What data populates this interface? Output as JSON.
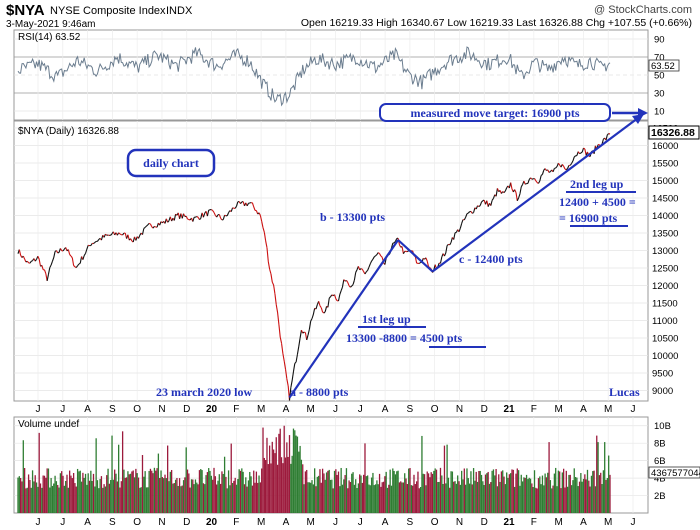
{
  "header": {
    "symbol": "$NYA",
    "name": "NYSE Composite Index",
    "exchange": "INDX",
    "watermark": "@ StockCharts.com",
    "date": "3-May-2021 9:46am",
    "ohlc": "Open 16219.33  High 16340.67  Low 16219.33  Last 16326.88  Chg +107.55 (+0.66%)"
  },
  "rsi": {
    "label": "RSI(14) 63.52",
    "value_badge": "63.52",
    "ticks": [
      "90",
      "70",
      "50",
      "30",
      "10"
    ]
  },
  "price": {
    "label": "$NYA (Daily) 16326.88",
    "last_badge": "16326.88",
    "ticks": [
      "16500",
      "16000",
      "15500",
      "15000",
      "14500",
      "14000",
      "13500",
      "13000",
      "12500",
      "12000",
      "11500",
      "11000",
      "10500",
      "10000",
      "9500",
      "9000"
    ]
  },
  "volume": {
    "label": "Volume undef",
    "badge": "4367577044",
    "ticks": [
      "10B",
      "8B",
      "6B",
      "4B",
      "2B"
    ]
  },
  "x_axis": [
    "J",
    "J",
    "A",
    "S",
    "O",
    "N",
    "D",
    "20",
    "F",
    "M",
    "A",
    "M",
    "J",
    "J",
    "A",
    "S",
    "O",
    "N",
    "D",
    "21",
    "F",
    "M",
    "A",
    "M",
    "J"
  ],
  "annotations": {
    "target": "measured move target: 16900 pts",
    "daily": "daily chart",
    "b": "b - 13300 pts",
    "c": "c - 12400 pts",
    "a": "a - 8800 pts",
    "low": "23 march 2020 low",
    "leg1_title": "1st leg up",
    "leg1_calc": "13300 -8800 = 4500 pts",
    "leg2_title": "2nd leg up",
    "leg2_calc1": "12400 + 4500 =",
    "leg2_calc2": "= 16900 pts",
    "author": "Lucas"
  },
  "colors": {
    "price": "#111111",
    "price_down": "#cc1111",
    "annotation": "#2233bb",
    "volume_up": "#2e7d32",
    "volume_down": "#9c1a3c",
    "rsi": "#6b7d8f"
  },
  "chart_data": {
    "type": "line",
    "price_anchors": [
      [
        0,
        13000
      ],
      [
        8,
        12600
      ],
      [
        15,
        12800
      ],
      [
        22,
        12200
      ],
      [
        28,
        12900
      ],
      [
        36,
        13100
      ],
      [
        44,
        12500
      ],
      [
        55,
        13200
      ],
      [
        66,
        13400
      ],
      [
        77,
        13500
      ],
      [
        88,
        13300
      ],
      [
        99,
        13700
      ],
      [
        110,
        13800
      ],
      [
        121,
        14000
      ],
      [
        133,
        13900
      ],
      [
        145,
        14100
      ],
      [
        155,
        13900
      ],
      [
        165,
        14300
      ],
      [
        175,
        14350
      ],
      [
        178,
        14250
      ],
      [
        183,
        14000
      ],
      [
        187,
        13300
      ],
      [
        190,
        12500
      ],
      [
        194,
        11800
      ],
      [
        197,
        10900
      ],
      [
        200,
        10000
      ],
      [
        203,
        9300
      ],
      [
        205,
        8800
      ],
      [
        208,
        9500
      ],
      [
        211,
        10100
      ],
      [
        214,
        10800
      ],
      [
        218,
        10500
      ],
      [
        222,
        11100
      ],
      [
        227,
        11500
      ],
      [
        232,
        11200
      ],
      [
        237,
        11800
      ],
      [
        242,
        11600
      ],
      [
        247,
        12200
      ],
      [
        252,
        12000
      ],
      [
        257,
        12500
      ],
      [
        262,
        12300
      ],
      [
        267,
        12700
      ],
      [
        272,
        12900
      ],
      [
        277,
        12600
      ],
      [
        282,
        13100
      ],
      [
        287,
        13300
      ],
      [
        292,
        12900
      ],
      [
        297,
        13000
      ],
      [
        302,
        12600
      ],
      [
        307,
        12800
      ],
      [
        312,
        12400
      ],
      [
        317,
        12600
      ],
      [
        322,
        12900
      ],
      [
        327,
        13300
      ],
      [
        333,
        13600
      ],
      [
        339,
        14000
      ],
      [
        345,
        14200
      ],
      [
        351,
        14400
      ],
      [
        357,
        14300
      ],
      [
        362,
        14700
      ],
      [
        367,
        14600
      ],
      [
        372,
        14900
      ],
      [
        377,
        14500
      ],
      [
        382,
        14900
      ],
      [
        388,
        15100
      ],
      [
        393,
        15000
      ],
      [
        398,
        15300
      ],
      [
        404,
        15200
      ],
      [
        409,
        15500
      ],
      [
        414,
        15300
      ],
      [
        420,
        15700
      ],
      [
        426,
        15900
      ],
      [
        432,
        15700
      ],
      [
        438,
        16000
      ],
      [
        444,
        16200
      ],
      [
        447,
        16326.88
      ]
    ],
    "rsi_anchors": [
      [
        0,
        55
      ],
      [
        15,
        62
      ],
      [
        30,
        48
      ],
      [
        45,
        66
      ],
      [
        60,
        54
      ],
      [
        75,
        70
      ],
      [
        90,
        58
      ],
      [
        105,
        72
      ],
      [
        120,
        60
      ],
      [
        135,
        74
      ],
      [
        150,
        60
      ],
      [
        165,
        72
      ],
      [
        175,
        65
      ],
      [
        185,
        40
      ],
      [
        195,
        22
      ],
      [
        205,
        28
      ],
      [
        215,
        55
      ],
      [
        225,
        68
      ],
      [
        240,
        62
      ],
      [
        255,
        70
      ],
      [
        270,
        58
      ],
      [
        285,
        72
      ],
      [
        295,
        50
      ],
      [
        305,
        42
      ],
      [
        315,
        55
      ],
      [
        325,
        66
      ],
      [
        340,
        74
      ],
      [
        355,
        62
      ],
      [
        370,
        70
      ],
      [
        380,
        48
      ],
      [
        390,
        64
      ],
      [
        400,
        56
      ],
      [
        412,
        70
      ],
      [
        422,
        60
      ],
      [
        432,
        66
      ],
      [
        440,
        58
      ],
      [
        447,
        63.52
      ]
    ],
    "volume_range_B": [
      2,
      10
    ],
    "price_ylim": [
      8700,
      16700
    ],
    "rsi_ylim": [
      0,
      100
    ],
    "volume_ylim": [
      0,
      11
    ],
    "n_days": 448
  }
}
